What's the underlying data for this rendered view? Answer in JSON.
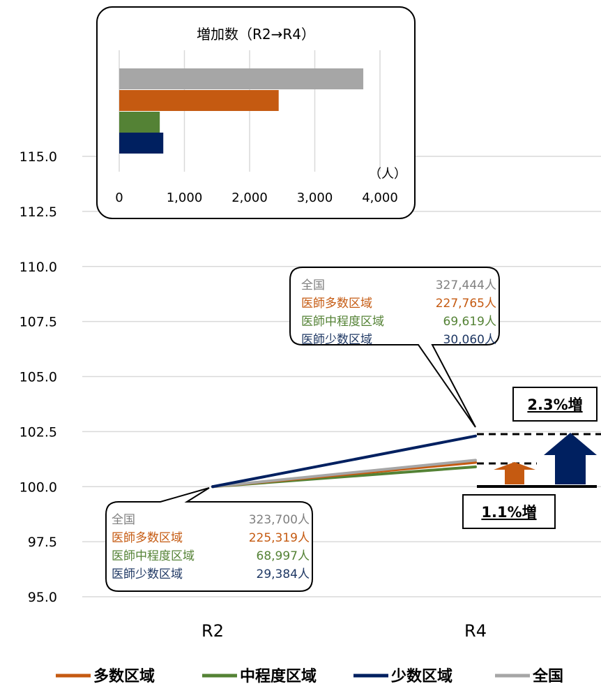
{
  "chart_data": [
    {
      "type": "line",
      "categories": [
        "R2",
        "R4"
      ],
      "ylim": [
        95.0,
        115.0
      ],
      "yticks": [
        "95.0",
        "97.5",
        "100.0",
        "102.5",
        "105.0",
        "107.5",
        "110.0",
        "112.5",
        "115.0"
      ],
      "grid": true,
      "legend_position": "bottom",
      "series": [
        {
          "name": "多数区域",
          "values": [
            100.0,
            101.1
          ],
          "color": "#C55A11"
        },
        {
          "name": "中程度区域",
          "values": [
            100.0,
            100.9
          ],
          "color": "#548235"
        },
        {
          "name": "少数区域",
          "values": [
            100.0,
            102.3
          ],
          "color": "#002060"
        },
        {
          "name": "全国",
          "values": [
            100.0,
            101.2
          ],
          "color": "#A6A6A6"
        }
      ],
      "annotations": {
        "increase_low": "1.1%増",
        "increase_high": "2.3%増"
      },
      "callouts": {
        "r2": [
          {
            "label": "全国",
            "value": "323,700人",
            "color": "#808080"
          },
          {
            "label": "医師多数区域",
            "value": "225,319人",
            "color": "#C55A11"
          },
          {
            "label": "医師中程度区域",
            "value": "68,997人",
            "color": "#548235"
          },
          {
            "label": "医師少数区域",
            "value": "29,384人",
            "color": "#1F3864"
          }
        ],
        "r4": [
          {
            "label": "全国",
            "value": "327,444人",
            "color": "#808080"
          },
          {
            "label": "医師多数区域",
            "value": "227,765人",
            "color": "#C55A11"
          },
          {
            "label": "医師中程度区域",
            "value": "69,619人",
            "color": "#548235"
          },
          {
            "label": "医師少数区域",
            "value": "30,060人",
            "color": "#1F3864"
          }
        ]
      }
    },
    {
      "type": "bar",
      "orientation": "horizontal",
      "title": "増加数（R2→R4）",
      "unit": "（人）",
      "xlim": [
        0,
        4000
      ],
      "xticks": [
        "0",
        "1,000",
        "2,000",
        "3,000",
        "4,000"
      ],
      "series": [
        {
          "name": "全国",
          "value": 3744,
          "color": "#A6A6A6"
        },
        {
          "name": "多数区域",
          "value": 2446,
          "color": "#C55A11"
        },
        {
          "name": "中程度区域",
          "value": 622,
          "color": "#548235"
        },
        {
          "name": "少数区域",
          "value": 676,
          "color": "#002060"
        }
      ]
    }
  ]
}
